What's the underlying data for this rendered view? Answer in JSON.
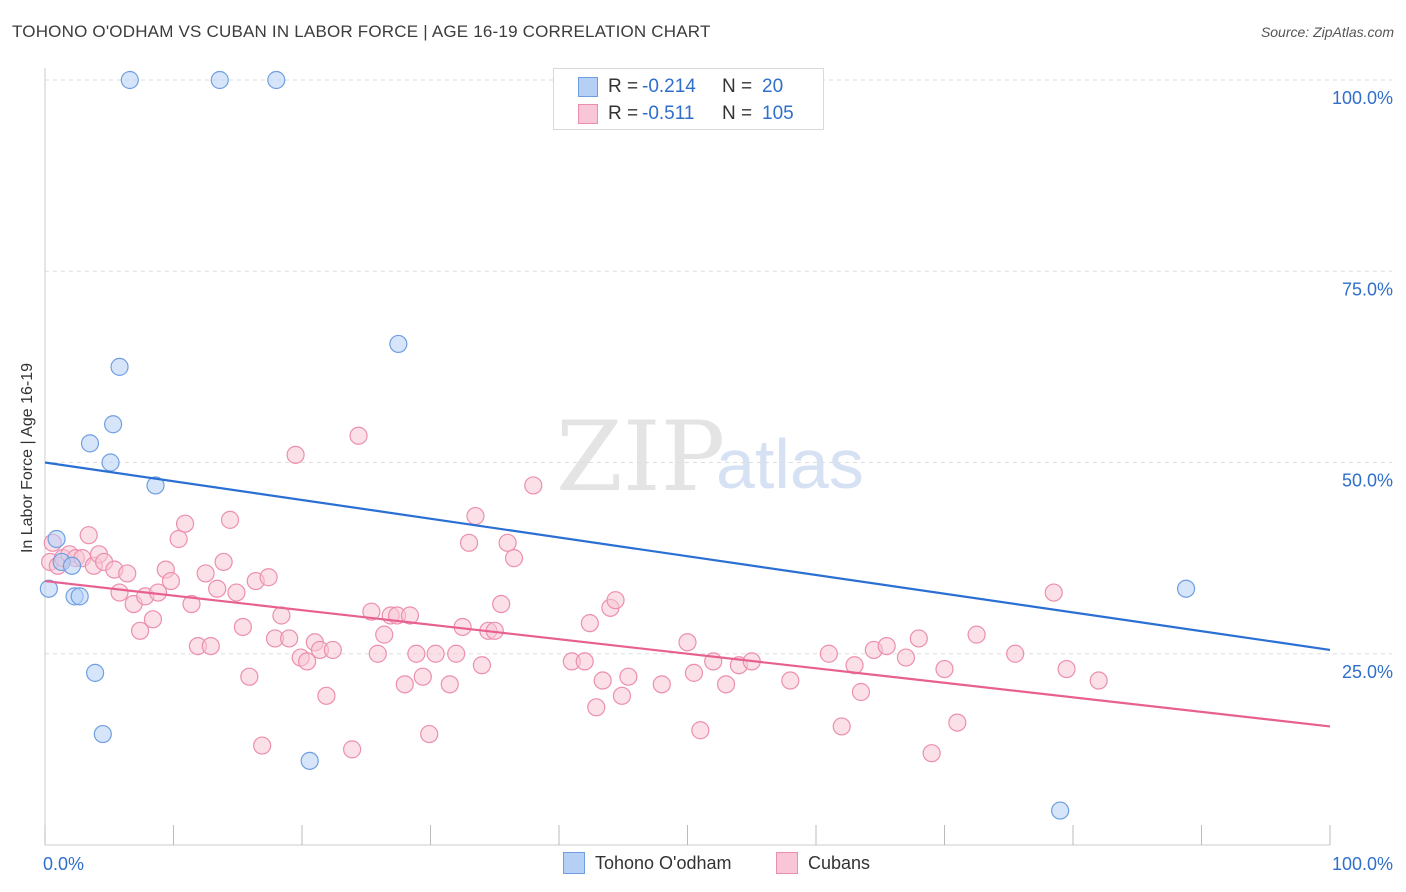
{
  "header": {
    "title": "TOHONO O'ODHAM VS CUBAN IN LABOR FORCE | AGE 16-19 CORRELATION CHART",
    "source": "Source: ZipAtlas.com"
  },
  "watermark": {
    "zip": "ZIP",
    "atlas": "atlas"
  },
  "legend_top": {
    "rows": [
      {
        "r_label": "R =",
        "r_value": "-0.214",
        "n_label": "N =",
        "n_value": "20"
      },
      {
        "r_label": "R =",
        "r_value": "-0.511",
        "n_label": "N =",
        "n_value": "105"
      }
    ]
  },
  "legend_bottom": {
    "series1": "Tohono O'odham",
    "series2": "Cubans"
  },
  "colors": {
    "blue_fill": "#b6d0f5",
    "blue_stroke": "#6f9fe0",
    "blue_line": "#2a6fd3",
    "pink_fill": "#f8c6d6",
    "pink_stroke": "#ec8fae",
    "pink_line": "#e8608f",
    "grid": "#dddddd",
    "axis_text": "#2f6fca"
  },
  "chart_data": {
    "type": "scatter",
    "title": "TOHONO O'ODHAM VS CUBAN IN LABOR FORCE | AGE 16-19 CORRELATION CHART",
    "xlabel": "",
    "ylabel": "In Labor Force | Age 16-19",
    "xlim": [
      0,
      100
    ],
    "ylim": [
      0,
      100
    ],
    "x_tick_labels": [
      "0.0%",
      "100.0%"
    ],
    "y_tick_labels": [
      "25.0%",
      "50.0%",
      "75.0%",
      "100.0%"
    ],
    "y_ticks": [
      25,
      50,
      75,
      100
    ],
    "legend_position": "top-center",
    "series": [
      {
        "name": "Tohono O'odham",
        "color": "#2a6fd3",
        "R": -0.214,
        "N": 20,
        "trend": [
          [
            0,
            50.0
          ],
          [
            100,
            25.5
          ]
        ],
        "points": [
          [
            0.3,
            33.5
          ],
          [
            0.9,
            40.0
          ],
          [
            1.3,
            37.0
          ],
          [
            2.1,
            36.5
          ],
          [
            2.3,
            32.5
          ],
          [
            2.7,
            32.5
          ],
          [
            3.5,
            52.5
          ],
          [
            3.9,
            22.5
          ],
          [
            4.5,
            14.5
          ],
          [
            5.1,
            50.0
          ],
          [
            5.3,
            55.0
          ],
          [
            5.8,
            62.5
          ],
          [
            6.6,
            100.0
          ],
          [
            8.6,
            47.0
          ],
          [
            13.6,
            100.0
          ],
          [
            18.0,
            100.0
          ],
          [
            20.6,
            11.0
          ],
          [
            27.5,
            65.5
          ],
          [
            79.0,
            4.5
          ],
          [
            88.8,
            33.5
          ]
        ]
      },
      {
        "name": "Cubans",
        "color": "#e8608f",
        "R": -0.511,
        "N": 105,
        "trend": [
          [
            0,
            34.5
          ],
          [
            100,
            15.5
          ]
        ],
        "points": [
          [
            0.4,
            37.0
          ],
          [
            0.6,
            39.5
          ],
          [
            1.0,
            36.5
          ],
          [
            1.4,
            37.5
          ],
          [
            1.9,
            38.0
          ],
          [
            2.4,
            37.5
          ],
          [
            2.9,
            37.5
          ],
          [
            3.4,
            40.5
          ],
          [
            3.8,
            36.5
          ],
          [
            4.2,
            38.0
          ],
          [
            4.6,
            37.0
          ],
          [
            5.4,
            36.0
          ],
          [
            5.8,
            33.0
          ],
          [
            6.4,
            35.5
          ],
          [
            6.9,
            31.5
          ],
          [
            7.4,
            28.0
          ],
          [
            7.8,
            32.5
          ],
          [
            8.4,
            29.5
          ],
          [
            8.8,
            33.0
          ],
          [
            9.4,
            36.0
          ],
          [
            9.8,
            34.5
          ],
          [
            10.4,
            40.0
          ],
          [
            10.9,
            42.0
          ],
          [
            11.4,
            31.5
          ],
          [
            11.9,
            26.0
          ],
          [
            12.5,
            35.5
          ],
          [
            12.9,
            26.0
          ],
          [
            13.4,
            33.5
          ],
          [
            13.9,
            37.0
          ],
          [
            14.4,
            42.5
          ],
          [
            14.9,
            33.0
          ],
          [
            15.4,
            28.5
          ],
          [
            15.9,
            22.0
          ],
          [
            16.4,
            34.5
          ],
          [
            16.9,
            13.0
          ],
          [
            17.4,
            35.0
          ],
          [
            17.9,
            27.0
          ],
          [
            18.4,
            30.0
          ],
          [
            19.0,
            27.0
          ],
          [
            19.5,
            51.0
          ],
          [
            19.9,
            24.5
          ],
          [
            20.4,
            24.0
          ],
          [
            21.0,
            26.5
          ],
          [
            21.4,
            25.5
          ],
          [
            21.9,
            19.5
          ],
          [
            22.4,
            25.5
          ],
          [
            23.9,
            12.5
          ],
          [
            24.4,
            53.5
          ],
          [
            25.4,
            30.5
          ],
          [
            25.9,
            25.0
          ],
          [
            26.4,
            27.5
          ],
          [
            26.9,
            30.0
          ],
          [
            27.4,
            30.0
          ],
          [
            28.0,
            21.0
          ],
          [
            28.4,
            30.0
          ],
          [
            28.9,
            25.0
          ],
          [
            29.4,
            22.0
          ],
          [
            29.9,
            14.5
          ],
          [
            30.4,
            25.0
          ],
          [
            31.5,
            21.0
          ],
          [
            32.0,
            25.0
          ],
          [
            32.5,
            28.5
          ],
          [
            33.0,
            39.5
          ],
          [
            33.5,
            43.0
          ],
          [
            34.0,
            23.5
          ],
          [
            34.5,
            28.0
          ],
          [
            35.0,
            28.0
          ],
          [
            35.5,
            31.5
          ],
          [
            36.0,
            39.5
          ],
          [
            36.5,
            37.5
          ],
          [
            38.0,
            47.0
          ],
          [
            41.0,
            24.0
          ],
          [
            42.0,
            24.0
          ],
          [
            42.4,
            29.0
          ],
          [
            42.9,
            18.0
          ],
          [
            43.4,
            21.5
          ],
          [
            44.0,
            31.0
          ],
          [
            44.4,
            32.0
          ],
          [
            44.9,
            19.5
          ],
          [
            45.4,
            22.0
          ],
          [
            48.0,
            21.0
          ],
          [
            50.0,
            26.5
          ],
          [
            50.5,
            22.5
          ],
          [
            51.0,
            15.0
          ],
          [
            52.0,
            24.0
          ],
          [
            53.0,
            21.0
          ],
          [
            54.0,
            23.5
          ],
          [
            55.0,
            24.0
          ],
          [
            58.0,
            21.5
          ],
          [
            61.0,
            25.0
          ],
          [
            62.0,
            15.5
          ],
          [
            63.0,
            23.5
          ],
          [
            63.5,
            20.0
          ],
          [
            64.5,
            25.5
          ],
          [
            65.5,
            26.0
          ],
          [
            67.0,
            24.5
          ],
          [
            68.0,
            27.0
          ],
          [
            69.0,
            12.0
          ],
          [
            70.0,
            23.0
          ],
          [
            71.0,
            16.0
          ],
          [
            72.5,
            27.5
          ],
          [
            75.5,
            25.0
          ],
          [
            78.5,
            33.0
          ],
          [
            79.5,
            23.0
          ],
          [
            82.0,
            21.5
          ]
        ]
      }
    ]
  }
}
